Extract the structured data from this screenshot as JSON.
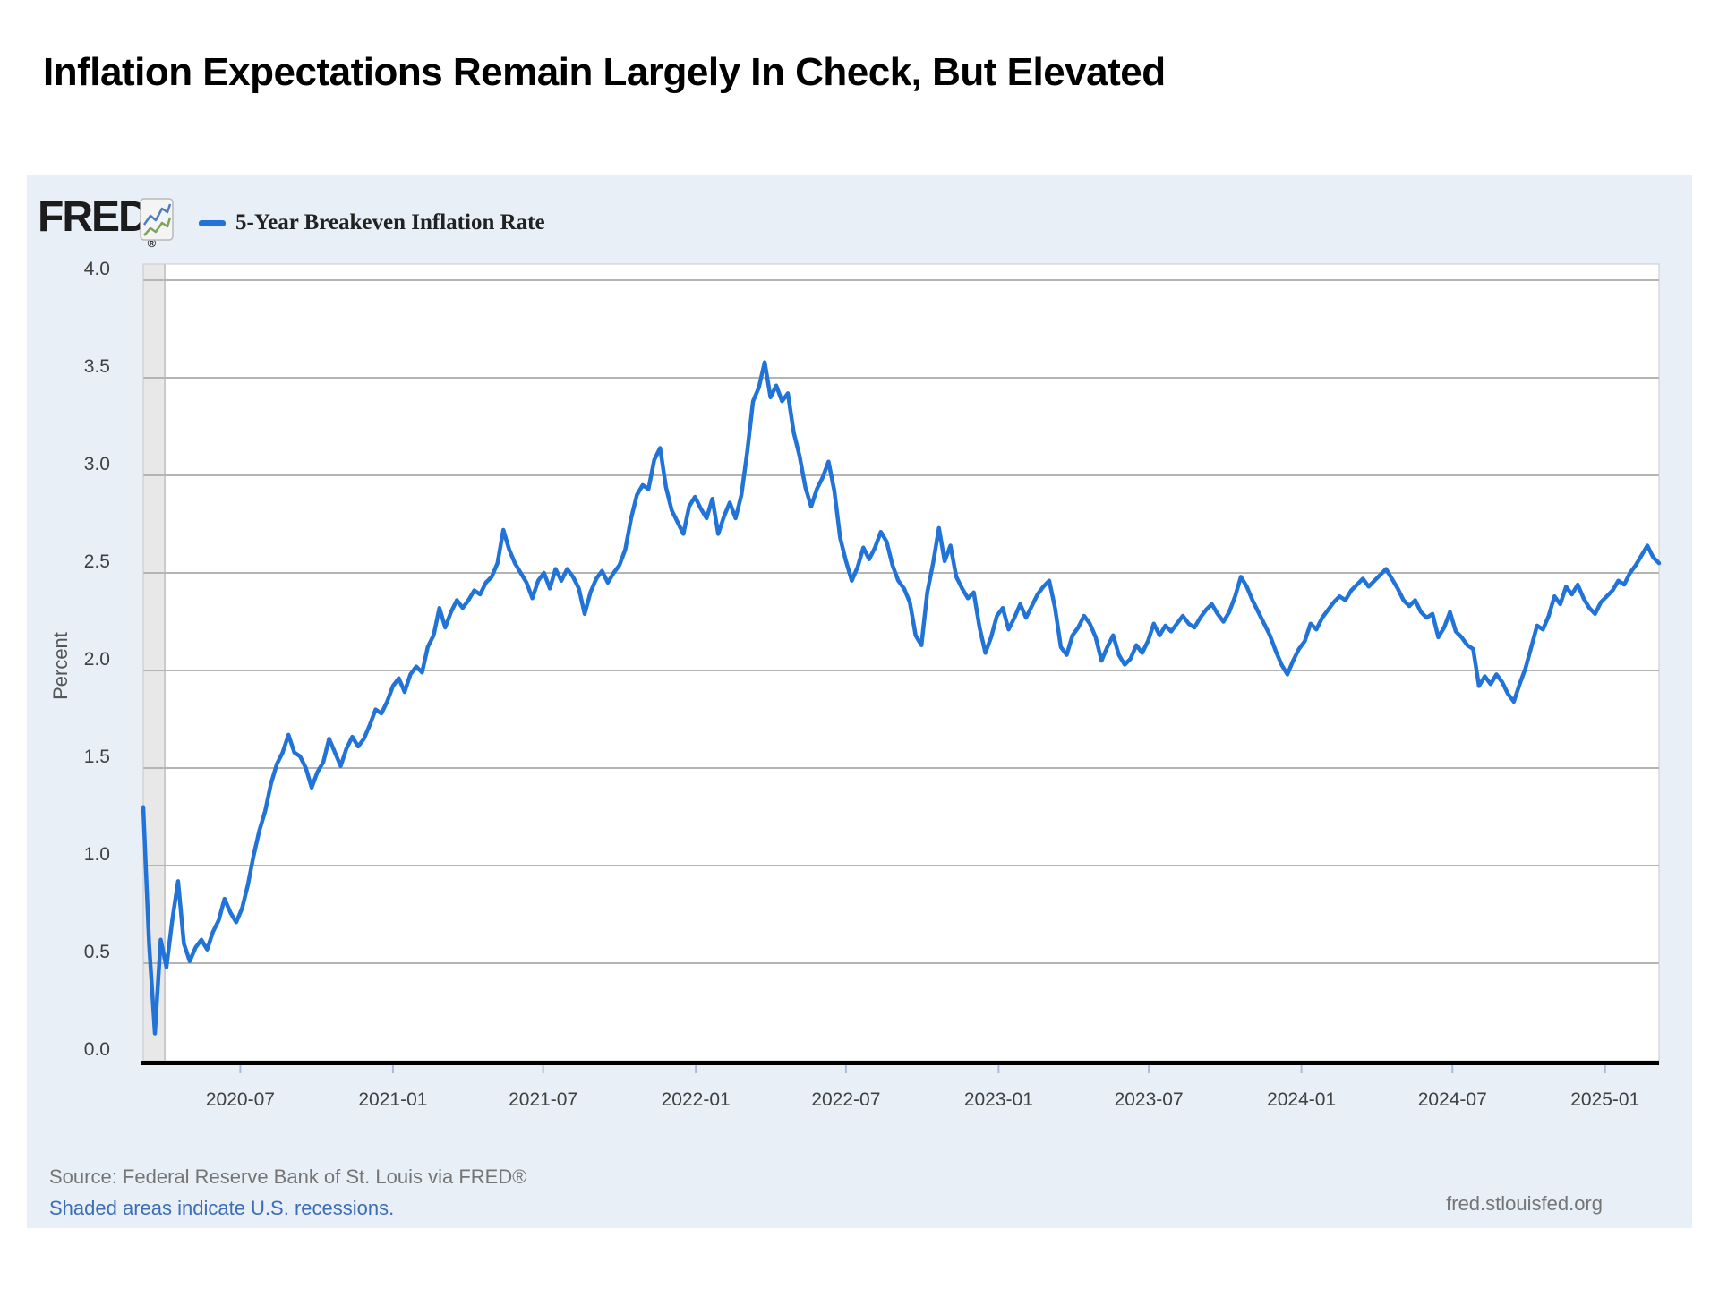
{
  "page": {
    "title": "Inflation Expectations Remain Largely In Check, But Elevated"
  },
  "chart": {
    "brand": "FRED",
    "brand_reg_mark": "®",
    "legend_label": "5-Year Breakeven Inflation Rate",
    "source_line1": "Source: Federal Reserve Bank of St. Louis via FRED®",
    "source_line2": "Shaded areas indicate U.S. recessions.",
    "site": "fred.stlouisfed.org",
    "colors": {
      "line": "#2173d8",
      "panel_bg": "#e8eff7",
      "plot_bg": "#ffffff",
      "grid": "#b4b4b4",
      "plot_border": "#c9c9c9",
      "axis": "#000000",
      "tick": "#a9bcd6",
      "tick_text": "#404040",
      "recession_band": "#e8e8e8",
      "recession_edge": "#bdbdbd",
      "link_blue": "#3c6db8",
      "source_gray": "#757575"
    }
  },
  "chart_data": {
    "type": "line",
    "title": "5-Year Breakeven Inflation Rate",
    "xlabel": "",
    "ylabel": "Percent",
    "ylim": [
      0.0,
      4.0
    ],
    "y_tick_labels": [
      "0.0",
      "0.5",
      "1.0",
      "1.5",
      "2.0",
      "2.5",
      "3.0",
      "3.5",
      "4.0"
    ],
    "x_tick_labels": [
      "2020-07",
      "2021-01",
      "2021-07",
      "2022-01",
      "2022-07",
      "2023-01",
      "2023-07",
      "2024-01",
      "2024-07",
      "2025-01"
    ],
    "x_domain": [
      "2020-03-06",
      "2025-03-07"
    ],
    "recession_band": {
      "start": "2020-03-06",
      "end": "2020-04-01"
    },
    "legend_position": "top-left",
    "grid": true,
    "sampling": "weekly",
    "start_date": "2020-03-06",
    "step_days": 7,
    "values": [
      1.3,
      0.6,
      0.14,
      0.62,
      0.48,
      0.72,
      0.92,
      0.6,
      0.51,
      0.58,
      0.62,
      0.57,
      0.66,
      0.72,
      0.83,
      0.76,
      0.71,
      0.78,
      0.9,
      1.05,
      1.18,
      1.28,
      1.42,
      1.52,
      1.58,
      1.67,
      1.58,
      1.56,
      1.5,
      1.4,
      1.48,
      1.53,
      1.65,
      1.58,
      1.51,
      1.6,
      1.66,
      1.61,
      1.65,
      1.72,
      1.8,
      1.78,
      1.84,
      1.92,
      1.96,
      1.89,
      1.98,
      2.02,
      1.99,
      2.12,
      2.18,
      2.32,
      2.22,
      2.3,
      2.36,
      2.32,
      2.36,
      2.41,
      2.39,
      2.45,
      2.48,
      2.55,
      2.72,
      2.62,
      2.55,
      2.5,
      2.45,
      2.37,
      2.46,
      2.5,
      2.42,
      2.52,
      2.46,
      2.52,
      2.48,
      2.42,
      2.29,
      2.4,
      2.47,
      2.51,
      2.45,
      2.5,
      2.54,
      2.62,
      2.78,
      2.9,
      2.95,
      2.93,
      3.08,
      3.14,
      2.94,
      2.82,
      2.76,
      2.7,
      2.84,
      2.89,
      2.83,
      2.78,
      2.88,
      2.7,
      2.79,
      2.86,
      2.78,
      2.9,
      3.12,
      3.38,
      3.45,
      3.58,
      3.4,
      3.46,
      3.38,
      3.42,
      3.22,
      3.1,
      2.94,
      2.84,
      2.93,
      2.99,
      3.07,
      2.92,
      2.68,
      2.56,
      2.46,
      2.53,
      2.63,
      2.57,
      2.63,
      2.71,
      2.66,
      2.54,
      2.46,
      2.42,
      2.35,
      2.18,
      2.13,
      2.4,
      2.55,
      2.73,
      2.56,
      2.64,
      2.48,
      2.42,
      2.37,
      2.4,
      2.22,
      2.09,
      2.17,
      2.28,
      2.32,
      2.21,
      2.27,
      2.34,
      2.27,
      2.33,
      2.39,
      2.43,
      2.46,
      2.32,
      2.12,
      2.08,
      2.18,
      2.22,
      2.28,
      2.24,
      2.17,
      2.05,
      2.12,
      2.18,
      2.08,
      2.03,
      2.06,
      2.13,
      2.09,
      2.15,
      2.24,
      2.18,
      2.23,
      2.2,
      2.24,
      2.28,
      2.24,
      2.22,
      2.27,
      2.31,
      2.34,
      2.29,
      2.25,
      2.3,
      2.38,
      2.48,
      2.43,
      2.36,
      2.3,
      2.24,
      2.18,
      2.1,
      2.03,
      1.98,
      2.05,
      2.11,
      2.15,
      2.24,
      2.21,
      2.27,
      2.31,
      2.35,
      2.38,
      2.36,
      2.41,
      2.44,
      2.47,
      2.43,
      2.46,
      2.49,
      2.52,
      2.47,
      2.42,
      2.36,
      2.33,
      2.36,
      2.3,
      2.27,
      2.29,
      2.17,
      2.22,
      2.3,
      2.2,
      2.17,
      2.13,
      2.11,
      1.92,
      1.97,
      1.93,
      1.98,
      1.94,
      1.88,
      1.84,
      1.93,
      2.01,
      2.12,
      2.23,
      2.21,
      2.28,
      2.38,
      2.34,
      2.43,
      2.39,
      2.44,
      2.37,
      2.32,
      2.29,
      2.35,
      2.38,
      2.41,
      2.46,
      2.44,
      2.5,
      2.54,
      2.59,
      2.64,
      2.58,
      2.55
    ]
  }
}
